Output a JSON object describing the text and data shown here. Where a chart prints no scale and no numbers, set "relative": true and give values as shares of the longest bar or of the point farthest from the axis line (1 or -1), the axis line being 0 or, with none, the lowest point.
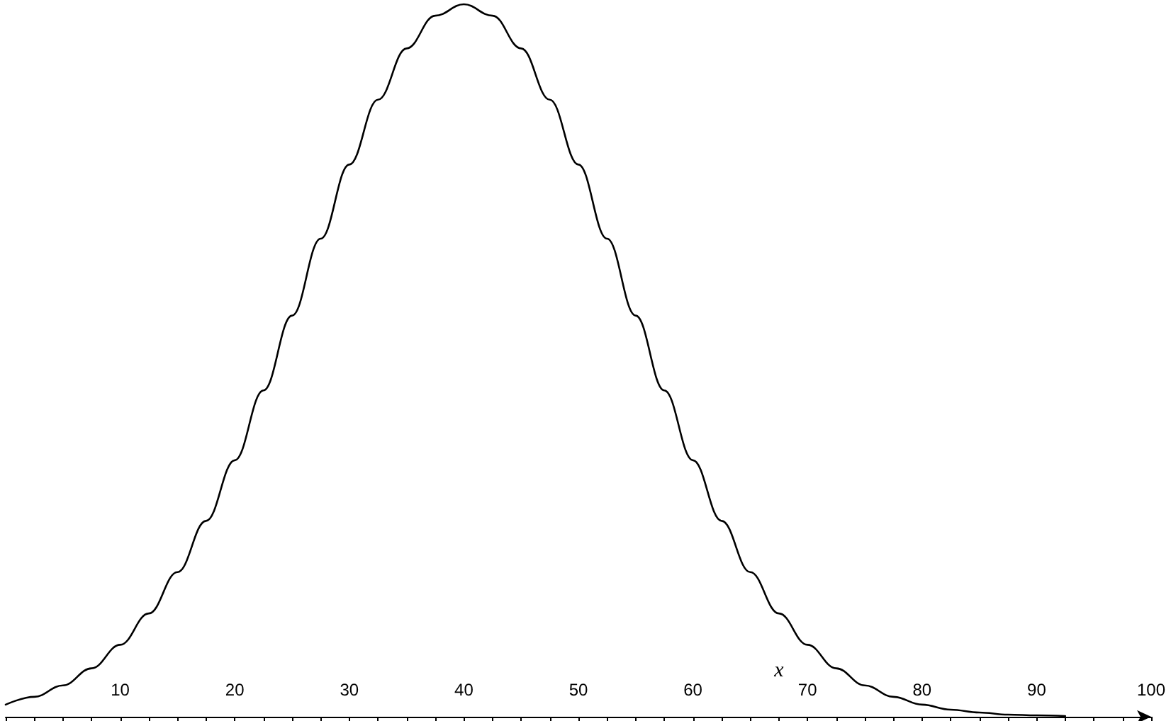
{
  "chart_data": {
    "type": "line",
    "relative": true,
    "xlabel": "x",
    "color": "#000000",
    "marker": "none",
    "line_style": "solid",
    "tick_labels": "x",
    "x": [
      0,
      2.5,
      5,
      7.5,
      10,
      12.5,
      15,
      17.5,
      20,
      22.5,
      25,
      27.5,
      30,
      32.5,
      35,
      37.5,
      40,
      42.5,
      45,
      47.5,
      50,
      52.5,
      55,
      57.5,
      60,
      62.5,
      65,
      67.5,
      70,
      72.5,
      75,
      77.5,
      80,
      82.5,
      85,
      87.5,
      90,
      92.5
    ],
    "values": [
      0.017,
      0.028,
      0.044,
      0.068,
      0.101,
      0.145,
      0.203,
      0.275,
      0.36,
      0.458,
      0.563,
      0.671,
      0.775,
      0.866,
      0.938,
      0.984,
      1,
      0.984,
      0.938,
      0.866,
      0.775,
      0.671,
      0.563,
      0.458,
      0.36,
      0.275,
      0.203,
      0.145,
      0.101,
      0.068,
      0.044,
      0.028,
      0.017,
      0.01,
      0.006,
      0.003,
      0.002,
      0.001
    ],
    "xlim": [
      0,
      100
    ],
    "xticks": [
      {
        "value": 0,
        "label": null
      },
      {
        "value": 2.5,
        "label": null
      },
      {
        "value": 5,
        "label": null
      },
      {
        "value": 7.5,
        "label": null
      },
      10,
      {
        "value": 12.5,
        "label": null
      },
      {
        "value": 15,
        "label": null
      },
      {
        "value": 17.5,
        "label": null
      },
      20,
      {
        "value": 22.5,
        "label": null
      },
      {
        "value": 25,
        "label": null
      },
      {
        "value": 27.5,
        "label": null
      },
      30,
      {
        "value": 32.5,
        "label": null
      },
      {
        "value": 35,
        "label": null
      },
      {
        "value": 37.5,
        "label": null
      },
      40,
      {
        "value": 42.5,
        "label": null
      },
      {
        "value": 45,
        "label": null
      },
      {
        "value": 47.5,
        "label": null
      },
      50,
      {
        "value": 52.5,
        "label": null
      },
      {
        "value": 55,
        "label": null
      },
      {
        "value": 57.5,
        "label": null
      },
      60,
      {
        "value": 62.5,
        "label": null
      },
      {
        "value": 65,
        "label": null
      },
      {
        "value": 67.5,
        "label": null
      },
      70,
      {
        "value": 72.5,
        "label": null
      },
      {
        "value": 75,
        "label": null
      },
      {
        "value": 77.5,
        "label": null
      },
      80,
      {
        "value": 82.5,
        "label": null
      },
      {
        "value": 85,
        "label": null
      },
      {
        "value": 87.5,
        "label": null
      },
      90,
      {
        "value": 92.5,
        "label": null
      },
      {
        "value": 95,
        "label": null
      },
      {
        "value": 97.5,
        "label": null
      },
      100
    ]
  }
}
